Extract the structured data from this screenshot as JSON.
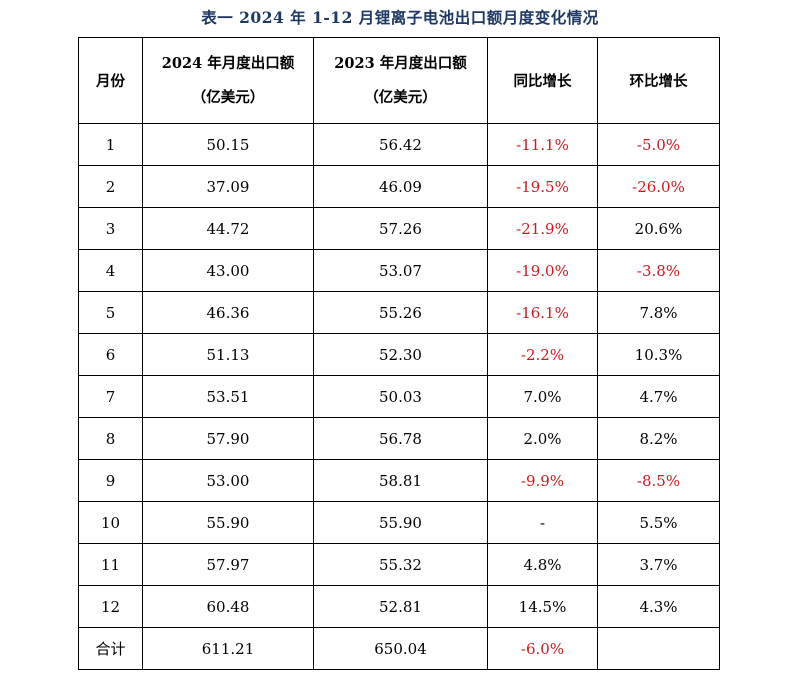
{
  "title": "表一  2024 年 1-12 月锂离子电池出口额月度变化情况",
  "headers": {
    "month": "月份",
    "export_2024_line1": "2024 年月度出口额",
    "export_2024_line2": "（亿美元）",
    "export_2023_line1": "2023 年月度出口额",
    "export_2023_line2": "（亿美元）",
    "yoy": "同比增长",
    "mom": "环比增长"
  },
  "rows": [
    {
      "month": "1",
      "v2024": "50.15",
      "v2023": "56.42",
      "yoy": "-11.1%",
      "yoy_neg": true,
      "mom": "-5.0%",
      "mom_neg": true
    },
    {
      "month": "2",
      "v2024": "37.09",
      "v2023": "46.09",
      "yoy": "-19.5%",
      "yoy_neg": true,
      "mom": "-26.0%",
      "mom_neg": true
    },
    {
      "month": "3",
      "v2024": "44.72",
      "v2023": "57.26",
      "yoy": "-21.9%",
      "yoy_neg": true,
      "mom": "20.6%",
      "mom_neg": false
    },
    {
      "month": "4",
      "v2024": "43.00",
      "v2023": "53.07",
      "yoy": "-19.0%",
      "yoy_neg": true,
      "mom": "-3.8%",
      "mom_neg": true
    },
    {
      "month": "5",
      "v2024": "46.36",
      "v2023": "55.26",
      "yoy": "-16.1%",
      "yoy_neg": true,
      "mom": "7.8%",
      "mom_neg": false
    },
    {
      "month": "6",
      "v2024": "51.13",
      "v2023": "52.30",
      "yoy": "-2.2%",
      "yoy_neg": true,
      "mom": "10.3%",
      "mom_neg": false
    },
    {
      "month": "7",
      "v2024": "53.51",
      "v2023": "50.03",
      "yoy": "7.0%",
      "yoy_neg": false,
      "mom": "4.7%",
      "mom_neg": false
    },
    {
      "month": "8",
      "v2024": "57.90",
      "v2023": "56.78",
      "yoy": "2.0%",
      "yoy_neg": false,
      "mom": "8.2%",
      "mom_neg": false
    },
    {
      "month": "9",
      "v2024": "53.00",
      "v2023": "58.81",
      "yoy": "-9.9%",
      "yoy_neg": true,
      "mom": "-8.5%",
      "mom_neg": true
    },
    {
      "month": "10",
      "v2024": "55.90",
      "v2023": "55.90",
      "yoy": "-",
      "yoy_neg": false,
      "mom": "5.5%",
      "mom_neg": false
    },
    {
      "month": "11",
      "v2024": "57.97",
      "v2023": "55.32",
      "yoy": "4.8%",
      "yoy_neg": false,
      "mom": "3.7%",
      "mom_neg": false
    },
    {
      "month": "12",
      "v2024": "60.48",
      "v2023": "52.81",
      "yoy": "14.5%",
      "yoy_neg": false,
      "mom": "4.3%",
      "mom_neg": false
    }
  ],
  "total": {
    "label": "合计",
    "v2024": "611.21",
    "v2023": "650.04",
    "yoy": "-6.0%",
    "yoy_neg": true,
    "mom": ""
  },
  "colors": {
    "title": "#1f3864",
    "negative": "#d0191f",
    "border": "#000000"
  }
}
